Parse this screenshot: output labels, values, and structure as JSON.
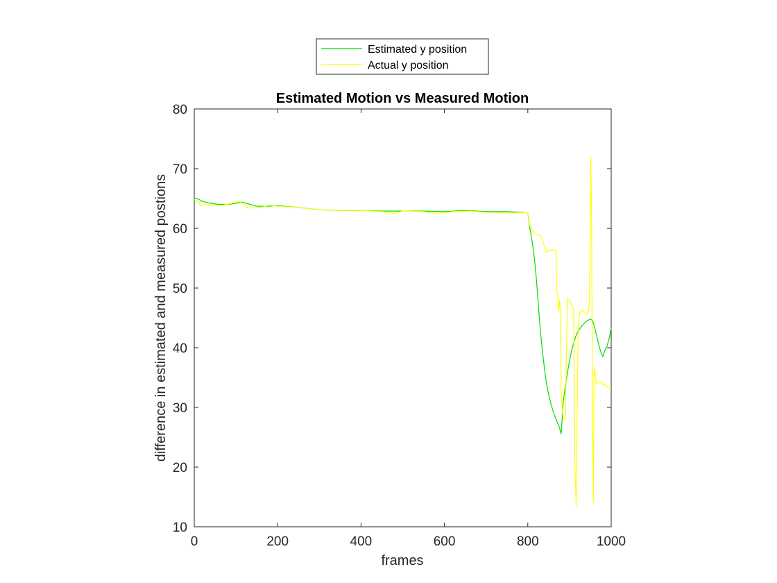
{
  "chart_data": {
    "type": "line",
    "title": "Estimated Motion vs Measured Motion",
    "xlabel": "frames",
    "ylabel": "difference in estimated and measured postions",
    "xlim": [
      0,
      1000
    ],
    "ylim": [
      10,
      80
    ],
    "xticks": [
      0,
      200,
      400,
      600,
      800,
      1000
    ],
    "yticks": [
      10,
      20,
      30,
      40,
      50,
      60,
      70,
      80
    ],
    "grid": false,
    "legend_position": "top-center-outside",
    "series": [
      {
        "name": "Estimated y position",
        "color": "#00dd00",
        "points": [
          [
            0,
            65.1
          ],
          [
            10,
            64.9
          ],
          [
            20,
            64.5
          ],
          [
            40,
            64.2
          ],
          [
            60,
            64.0
          ],
          [
            80,
            64.0
          ],
          [
            100,
            64.2
          ],
          [
            115,
            64.4
          ],
          [
            130,
            64.1
          ],
          [
            150,
            63.7
          ],
          [
            175,
            63.7
          ],
          [
            200,
            63.8
          ],
          [
            250,
            63.5
          ],
          [
            300,
            63.1
          ],
          [
            350,
            63.0
          ],
          [
            400,
            63.0
          ],
          [
            450,
            62.9
          ],
          [
            500,
            62.9
          ],
          [
            550,
            62.9
          ],
          [
            600,
            62.8
          ],
          [
            650,
            63.0
          ],
          [
            700,
            62.8
          ],
          [
            750,
            62.8
          ],
          [
            800,
            62.6
          ],
          [
            805,
            60.0
          ],
          [
            810,
            58.0
          ],
          [
            815,
            55.5
          ],
          [
            820,
            52.0
          ],
          [
            825,
            47.5
          ],
          [
            830,
            43.0
          ],
          [
            835,
            39.5
          ],
          [
            840,
            36.5
          ],
          [
            845,
            34.0
          ],
          [
            850,
            32.2
          ],
          [
            855,
            30.7
          ],
          [
            860,
            29.5
          ],
          [
            865,
            28.5
          ],
          [
            870,
            27.6
          ],
          [
            875,
            26.8
          ],
          [
            880,
            25.6
          ],
          [
            885,
            31.0
          ],
          [
            890,
            33.5
          ],
          [
            895,
            35.8
          ],
          [
            900,
            37.8
          ],
          [
            905,
            39.5
          ],
          [
            910,
            40.8
          ],
          [
            915,
            41.9
          ],
          [
            920,
            42.7
          ],
          [
            930,
            43.7
          ],
          [
            940,
            44.4
          ],
          [
            950,
            44.8
          ],
          [
            955,
            44.6
          ],
          [
            960,
            43.5
          ],
          [
            965,
            42.0
          ],
          [
            970,
            40.5
          ],
          [
            975,
            39.3
          ],
          [
            980,
            38.5
          ],
          [
            985,
            39.6
          ],
          [
            990,
            40.3
          ],
          [
            995,
            41.5
          ],
          [
            1000,
            43.3
          ]
        ]
      },
      {
        "name": "Actual y position",
        "color": "#ffff00",
        "points": [
          [
            0,
            64.8
          ],
          [
            10,
            64.5
          ],
          [
            15,
            63.8
          ],
          [
            25,
            64.0
          ],
          [
            35,
            63.9
          ],
          [
            50,
            63.8
          ],
          [
            70,
            63.9
          ],
          [
            90,
            64.2
          ],
          [
            100,
            64.4
          ],
          [
            110,
            64.5
          ],
          [
            120,
            64.0
          ],
          [
            125,
            63.5
          ],
          [
            140,
            63.4
          ],
          [
            160,
            63.5
          ],
          [
            180,
            63.9
          ],
          [
            200,
            63.7
          ],
          [
            250,
            63.5
          ],
          [
            300,
            63.1
          ],
          [
            350,
            63.0
          ],
          [
            400,
            63.0
          ],
          [
            450,
            62.8
          ],
          [
            480,
            62.5
          ],
          [
            500,
            62.9
          ],
          [
            550,
            62.8
          ],
          [
            580,
            62.5
          ],
          [
            620,
            62.8
          ],
          [
            660,
            62.9
          ],
          [
            700,
            62.7
          ],
          [
            750,
            62.6
          ],
          [
            800,
            62.6
          ],
          [
            805,
            60.5
          ],
          [
            812,
            59.5
          ],
          [
            820,
            59.0
          ],
          [
            830,
            58.8
          ],
          [
            835,
            58.0
          ],
          [
            840,
            57.0
          ],
          [
            845,
            56.0
          ],
          [
            852,
            56.3
          ],
          [
            860,
            56.4
          ],
          [
            868,
            56.3
          ],
          [
            869,
            50.0
          ],
          [
            872,
            48.0
          ],
          [
            874,
            46.0
          ],
          [
            876,
            48.0
          ],
          [
            878,
            46.0
          ],
          [
            880,
            32.0
          ],
          [
            885,
            28.0
          ],
          [
            890,
            28.2
          ],
          [
            895,
            48.2
          ],
          [
            900,
            48.0
          ],
          [
            905,
            47.0
          ],
          [
            910,
            46.5
          ],
          [
            913,
            20.0
          ],
          [
            916,
            13.5
          ],
          [
            919,
            33.0
          ],
          [
            921,
            44.0
          ],
          [
            925,
            46.0
          ],
          [
            930,
            46.3
          ],
          [
            935,
            46.0
          ],
          [
            940,
            45.5
          ],
          [
            945,
            46.0
          ],
          [
            948,
            47.5
          ],
          [
            951,
            72.0
          ],
          [
            953,
            60.0
          ],
          [
            955,
            30.0
          ],
          [
            957,
            14.0
          ],
          [
            959,
            36.5
          ],
          [
            962,
            35.5
          ],
          [
            965,
            34.0
          ],
          [
            970,
            34.2
          ],
          [
            975,
            34.3
          ],
          [
            980,
            33.8
          ],
          [
            985,
            34.0
          ],
          [
            990,
            33.4
          ],
          [
            1000,
            33.3
          ]
        ]
      }
    ]
  }
}
